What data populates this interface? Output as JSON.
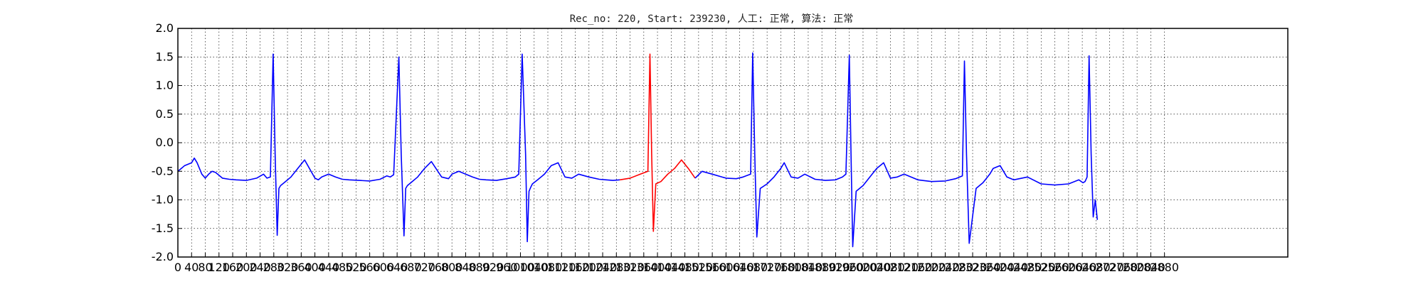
{
  "chart_data": {
    "type": "line",
    "title": "Rec_no: 220, Start: 239230, 人工: 正常, 算法: 正常",
    "xlabel": "",
    "ylabel": "",
    "xlim": [
      0,
      3240
    ],
    "ylim": [
      -2.0,
      2.0
    ],
    "grid": true,
    "yticks": [
      "-2.0",
      "-1.5",
      "-1.0",
      "-0.5",
      "0.0",
      "0.5",
      "1.0",
      "1.5",
      "2.0"
    ],
    "xticks": [
      "0",
      "40",
      "80",
      "120",
      "160",
      "200",
      "240",
      "280",
      "320",
      "360",
      "400",
      "440",
      "480",
      "520",
      "560",
      "600",
      "640",
      "680",
      "720",
      "760",
      "800",
      "840",
      "880",
      "920",
      "960",
      "1000",
      "1040",
      "1080",
      "1120",
      "1160",
      "1200",
      "1240",
      "1280",
      "1320",
      "1360",
      "1400",
      "1440",
      "1480",
      "1520",
      "1560",
      "1600",
      "1640",
      "1680",
      "1720",
      "1760",
      "1800",
      "1840",
      "1880",
      "1920",
      "1960",
      "2000",
      "2040",
      "2080",
      "2120",
      "2160",
      "2200",
      "2240",
      "2280",
      "2320",
      "2360",
      "2400",
      "2440",
      "2480",
      "2520",
      "2560",
      "2600",
      "2640",
      "2680",
      "2720",
      "2760",
      "2800",
      "2840",
      "2880"
    ],
    "highlight_color": "#ff0000",
    "series": [
      {
        "color": "#0000ff",
        "x": [
          0,
          20,
          40,
          48,
          56,
          70,
          80,
          90,
          100,
          110,
          130,
          150,
          170,
          200,
          230,
          250,
          260,
          270,
          278,
          284,
          290,
          295,
          300,
          310,
          330,
          350,
          370,
          400,
          410,
          420,
          440,
          460,
          480,
          500,
          530,
          560,
          590,
          610,
          620,
          630,
          645,
          652,
          660,
          665,
          670,
          680,
          700,
          720,
          740,
          770,
          790,
          800,
          820,
          840,
          860,
          880,
          900,
          930,
          960,
          985,
          995,
          1005,
          1015,
          1020,
          1025,
          1030,
          1035,
          1050,
          1070,
          1090,
          1110,
          1130,
          1150,
          1170,
          1200,
          1230,
          1250,
          1270,
          1290
        ],
        "y": [
          -0.5,
          -0.4,
          -0.35,
          -0.27,
          -0.35,
          -0.55,
          -0.62,
          -0.55,
          -0.5,
          -0.52,
          -0.62,
          -0.64,
          -0.65,
          -0.66,
          -0.62,
          -0.55,
          -0.62,
          -0.6,
          1.55,
          -0.2,
          -1.62,
          -0.8,
          -0.75,
          -0.7,
          -0.6,
          -0.45,
          -0.3,
          -0.62,
          -0.65,
          -0.6,
          -0.55,
          -0.6,
          -0.64,
          -0.65,
          -0.66,
          -0.67,
          -0.64,
          -0.58,
          -0.6,
          -0.56,
          1.5,
          -0.2,
          -1.63,
          -0.8,
          -0.75,
          -0.7,
          -0.6,
          -0.45,
          -0.33,
          -0.6,
          -0.63,
          -0.55,
          -0.5,
          -0.55,
          -0.6,
          -0.64,
          -0.65,
          -0.66,
          -0.63,
          -0.6,
          -0.55,
          1.55,
          -0.2,
          -1.73,
          -0.85,
          -0.78,
          -0.72,
          -0.65,
          -0.55,
          -0.4,
          -0.35,
          -0.6,
          -0.62,
          -0.55,
          -0.6,
          -0.64,
          -0.65,
          -0.66,
          -0.65
        ]
      },
      {
        "color": "#ff0000",
        "x": [
          1290,
          1320,
          1350,
          1372,
          1378,
          1383,
          1388,
          1395,
          1410,
          1430,
          1450,
          1470,
          1490,
          1510
        ],
        "y": [
          -0.65,
          -0.62,
          -0.55,
          -0.5,
          1.55,
          -0.2,
          -1.55,
          -0.72,
          -0.68,
          -0.55,
          -0.45,
          -0.3,
          -0.45,
          -0.62
        ]
      },
      {
        "color": "#0000ff",
        "x": [
          1510,
          1530,
          1560,
          1600,
          1630,
          1650,
          1672,
          1678,
          1684,
          1690,
          1700,
          1720,
          1740,
          1760,
          1770,
          1790,
          1810,
          1830,
          1860,
          1890,
          1920,
          1940,
          1950,
          1960,
          1965,
          1970,
          1980,
          2000,
          2020,
          2040,
          2060,
          2080,
          2100,
          2120,
          2160,
          2200,
          2240,
          2270,
          2290,
          2296,
          2302,
          2310,
          2330,
          2350,
          2370,
          2380,
          2400,
          2420,
          2440,
          2480,
          2520,
          2560,
          2600,
          2630,
          2642,
          2648,
          2654,
          2660,
          2666,
          2672,
          2678,
          2684
        ],
        "y": [
          -0.62,
          -0.5,
          -0.55,
          -0.62,
          -0.63,
          -0.6,
          -0.55,
          1.57,
          -0.2,
          -1.65,
          -0.8,
          -0.72,
          -0.6,
          -0.45,
          -0.35,
          -0.6,
          -0.62,
          -0.55,
          -0.64,
          -0.66,
          -0.65,
          -0.6,
          -0.55,
          1.53,
          -0.2,
          -1.82,
          -0.85,
          -0.75,
          -0.6,
          -0.45,
          -0.35,
          -0.62,
          -0.6,
          -0.55,
          -0.65,
          -0.68,
          -0.67,
          -0.63,
          -0.58,
          1.43,
          -0.2,
          -1.76,
          -0.8,
          -0.7,
          -0.55,
          -0.45,
          -0.4,
          -0.6,
          -0.65,
          -0.6,
          -0.72,
          -0.74,
          -0.72,
          -0.65,
          -0.7,
          -0.68,
          -0.6,
          1.52,
          -0.2,
          -1.3,
          -1.0,
          -1.35
        ]
      }
    ]
  }
}
